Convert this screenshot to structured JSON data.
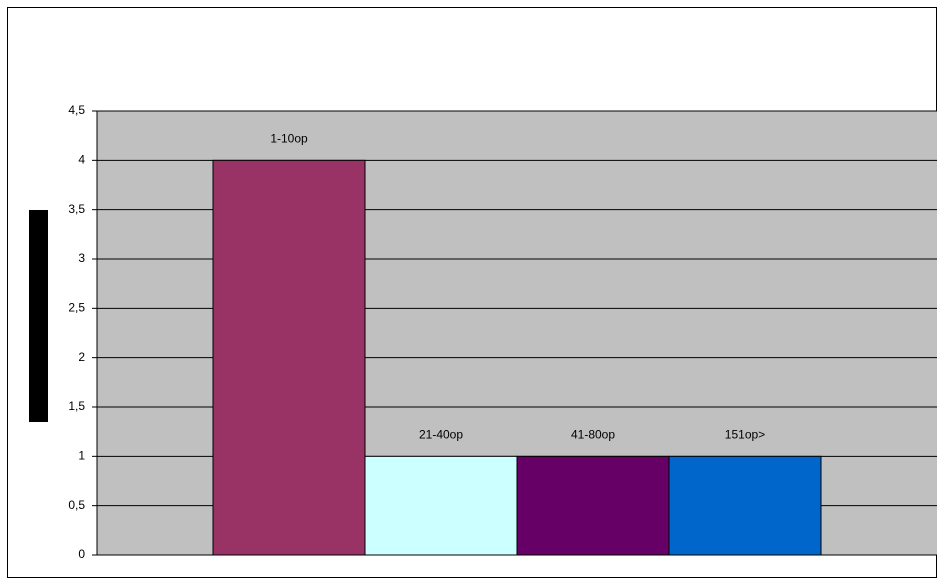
{
  "chart_data": {
    "type": "bar",
    "categories": [
      null
    ],
    "series": [
      {
        "name": "1-10op",
        "color": "#993366",
        "values": [
          4
        ]
      },
      {
        "name": "21-40op",
        "color": "#ccffff",
        "values": [
          1
        ]
      },
      {
        "name": "41-80op",
        "color": "#660066",
        "values": [
          1
        ]
      },
      {
        "name": "151op>",
        "color": "#0066cc",
        "values": [
          1
        ]
      }
    ],
    "ylim": [
      0,
      4.5
    ],
    "yticks": [
      0,
      {
        "value": 0.5,
        "label": "0,5"
      },
      1,
      {
        "value": 1.5,
        "label": "1,5"
      },
      2,
      {
        "value": 2.5,
        "label": "2,5"
      },
      3,
      {
        "value": 3.5,
        "label": "3,5"
      },
      4,
      {
        "value": 4.5,
        "label": "4,5"
      }
    ],
    "grid": true,
    "plot_background": "#c0c0c0"
  }
}
